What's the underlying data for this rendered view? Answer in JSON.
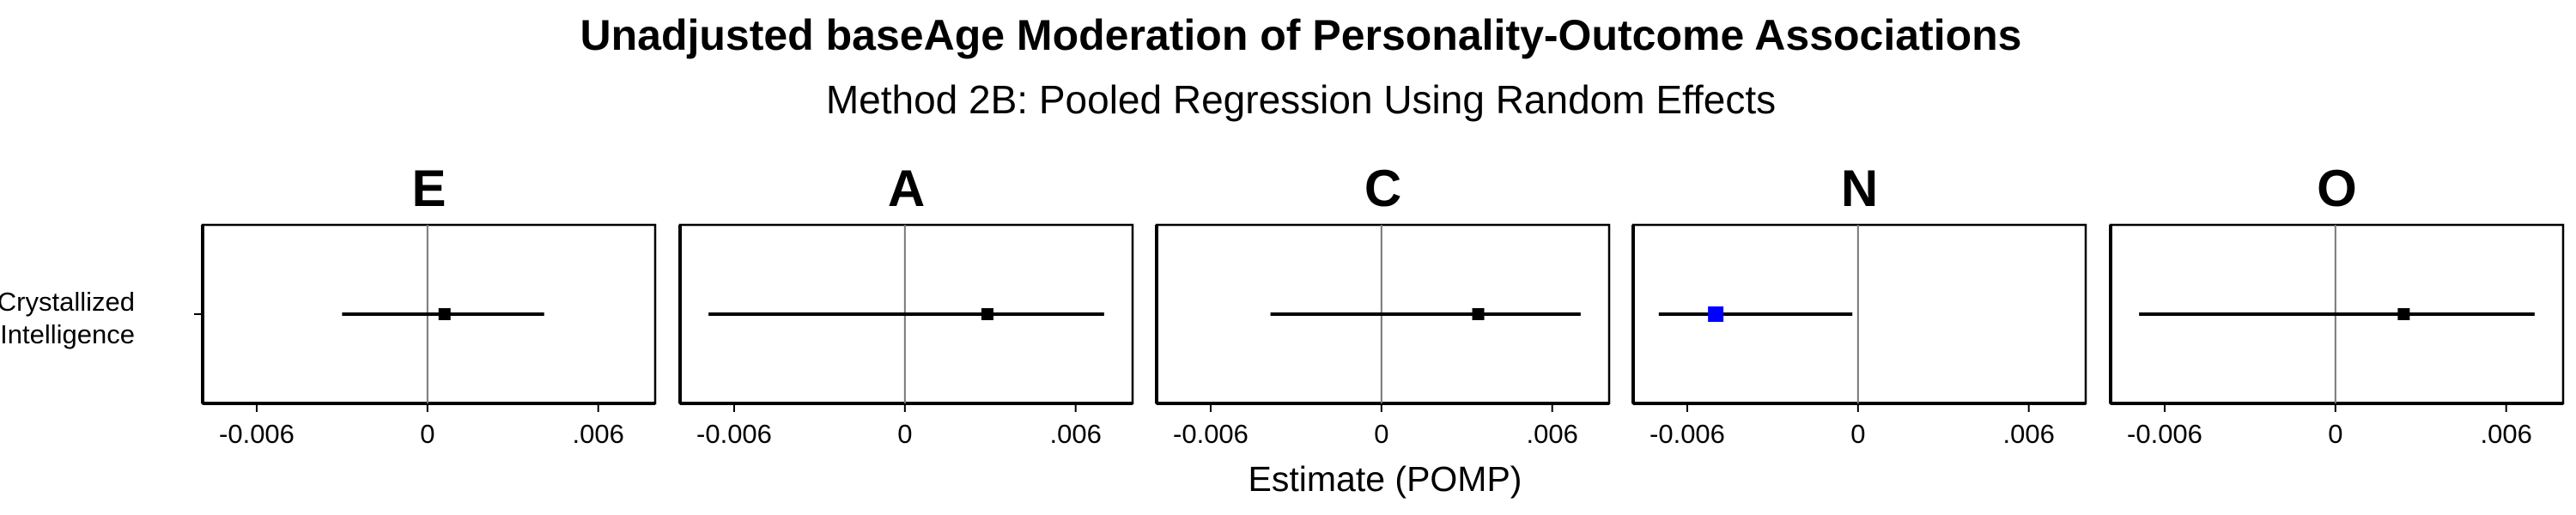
{
  "chart_data": {
    "type": "forest",
    "title": "Unadjusted baseAge Moderation of Personality-Outcome Associations",
    "subtitle": "Method 2B: Pooled Regression Using Random Effects",
    "xlabel": "Estimate (POMP)",
    "row_label_lines": [
      "Crystallized",
      "Intelligence"
    ],
    "xlim": [
      -0.0079,
      0.008
    ],
    "x_ticks": [
      -0.006,
      0,
      0.006
    ],
    "x_tick_labels": [
      "-0.006",
      "0",
      ".006"
    ],
    "panels": [
      {
        "facet": "E",
        "estimate": 0.0006,
        "ci": [
          -0.003,
          0.0041
        ],
        "color": "#000000"
      },
      {
        "facet": "A",
        "estimate": 0.0029,
        "ci": [
          -0.0069,
          0.007
        ],
        "color": "#000000"
      },
      {
        "facet": "C",
        "estimate": 0.0034,
        "ci": [
          -0.0039,
          0.007
        ],
        "color": "#000000"
      },
      {
        "facet": "N",
        "estimate": -0.005,
        "ci": [
          -0.007,
          -0.0002
        ],
        "color": "#0000ff"
      },
      {
        "facet": "O",
        "estimate": 0.0024,
        "ci": [
          -0.0069,
          0.007
        ],
        "color": "#000000"
      }
    ]
  }
}
